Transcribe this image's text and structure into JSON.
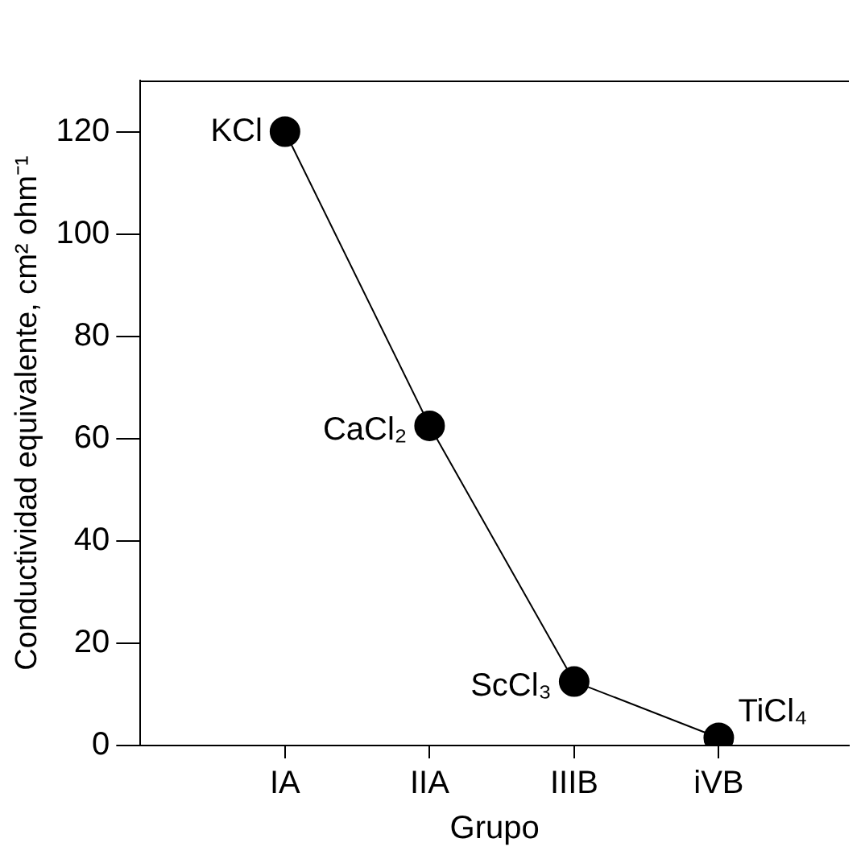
{
  "chart_data": {
    "type": "line",
    "xlabel": "Grupo",
    "ylabel": "Conductividad equivalente, cm² ohm⁻¹",
    "categories": [
      "IA",
      "IIA",
      "IIIB",
      "iVB"
    ],
    "series": [
      {
        "color": "#000000",
        "values": [
          120,
          62.5,
          12.5,
          1.5
        ]
      }
    ],
    "ylim": [
      0,
      130
    ],
    "yticks": [
      0,
      20,
      40,
      60,
      80,
      100,
      120
    ],
    "grid": false,
    "legend": false,
    "marker": "circle",
    "line_style": "solid",
    "annotations": [
      {
        "text": "KCl",
        "x": "IA",
        "y": 120
      },
      {
        "text": "CaCl₂",
        "x": "IIA",
        "y": 62.5
      },
      {
        "text": "ScCl₃",
        "x": "IIIB",
        "y": 12.5
      },
      {
        "text": "TiCl₄",
        "x": "iVB",
        "y": 1.5
      }
    ]
  }
}
